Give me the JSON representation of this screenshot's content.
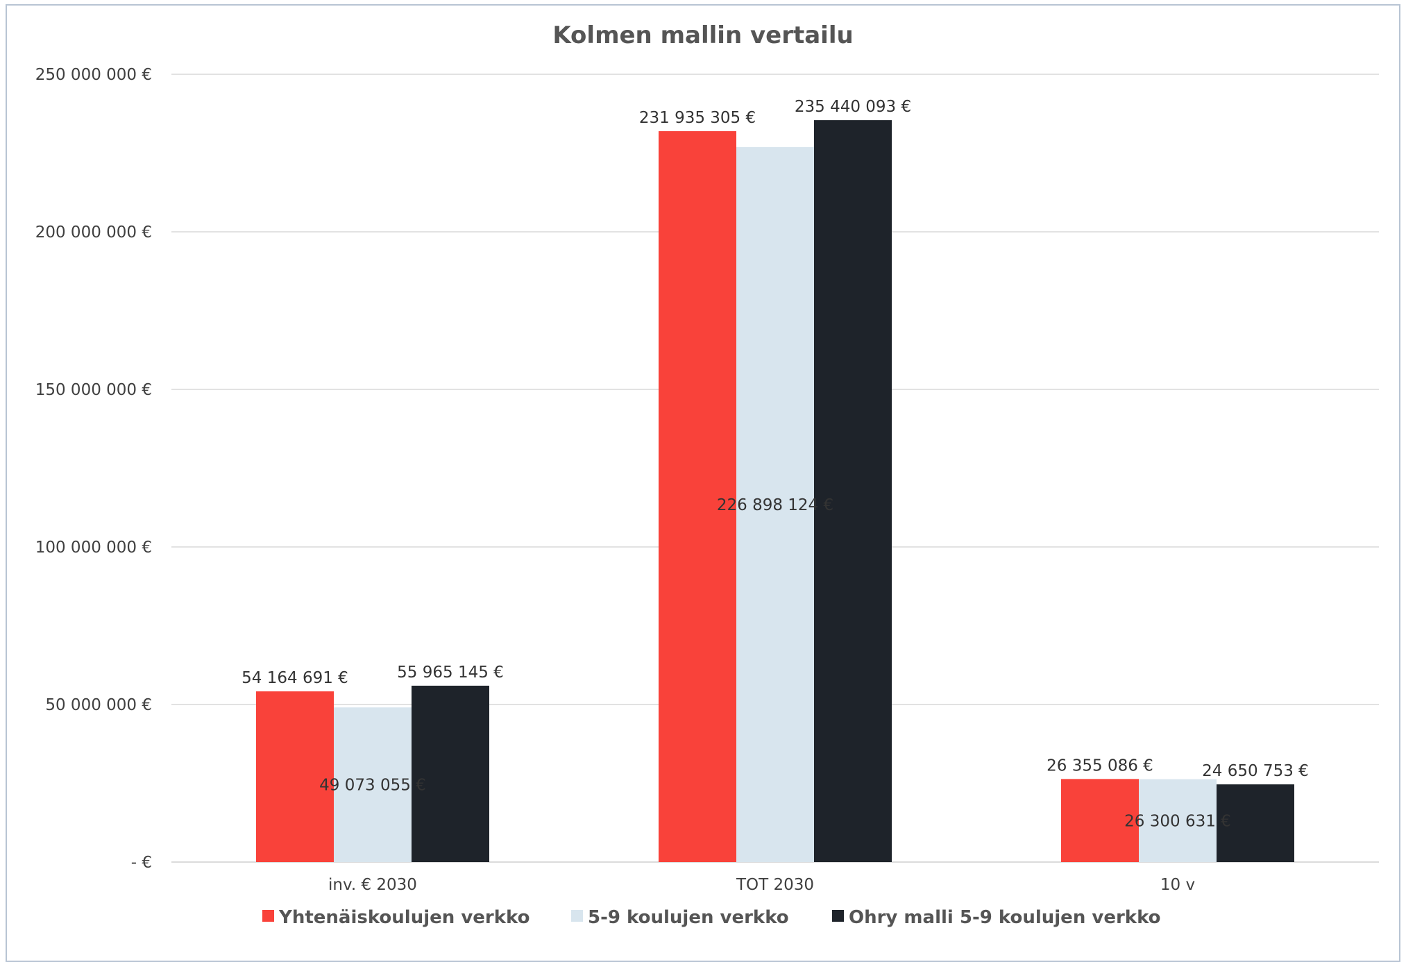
{
  "chart_data": {
    "type": "bar",
    "title": "Kolmen mallin vertailu",
    "xlabel": "",
    "ylabel": "",
    "categories": [
      "inv. € 2030",
      "TOT 2030",
      "10 v"
    ],
    "ylim": [
      0,
      250000000
    ],
    "yticks": [
      0,
      50000000,
      100000000,
      150000000,
      200000000,
      250000000
    ],
    "ytick_labels": [
      "-  €",
      "50 000 000 €",
      "100 000 000 €",
      "150 000 000 €",
      "200 000 000 €",
      "250 000 000 €"
    ],
    "grid": true,
    "legend_position": "bottom",
    "series": [
      {
        "name": "Yhtenäiskoulujen verkko",
        "color": "#f9423a",
        "values": [
          54164691,
          231935305,
          26355086
        ],
        "labels": [
          "54 164 691 €",
          "231 935 305 €",
          "26 355 086 €"
        ],
        "label_position": "above"
      },
      {
        "name": "5-9 koulujen verkko",
        "color": "#d8e5ee",
        "values": [
          49073055,
          226898124,
          26300631
        ],
        "labels": [
          "49 073 055 €",
          "226 898 124 €",
          "26 300 631 €"
        ],
        "label_position": "center"
      },
      {
        "name": "Ohry malli 5-9 koulujen verkko",
        "color": "#1e232a",
        "values": [
          55965145,
          235440093,
          24650753
        ],
        "labels": [
          "55 965 145 €",
          "235 440 093 €",
          "24 650 753 €"
        ],
        "label_position": "above"
      }
    ]
  }
}
